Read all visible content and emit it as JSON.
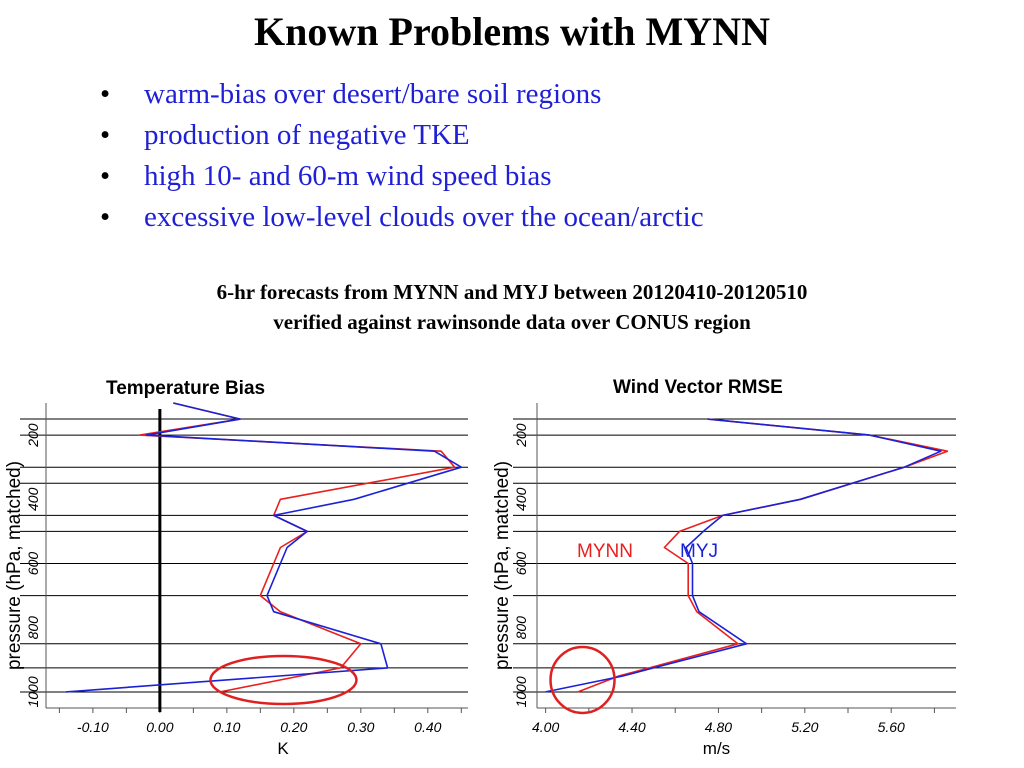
{
  "slide": {
    "title": "Known Problems with MYNN",
    "bullets": [
      "warm-bias over desert/bare soil regions",
      "production of negative TKE",
      "high 10- and 60-m wind speed bias",
      "excessive low-level clouds over the ocean/arctic"
    ],
    "subtitle_line1": "6-hr forecasts from MYNN and MYJ between 20120410-20120510",
    "subtitle_line2": "verified against rawinsonde data over CONUS region"
  },
  "colors": {
    "mynn": "#e8201e",
    "myj": "#1a22d8",
    "text": "#000000",
    "circle": "#e02020"
  },
  "chart_data": [
    {
      "type": "line",
      "title": "Temperature Bias",
      "xlabel": "K",
      "ylabel": "pressure (hPa, matched)",
      "xlim": [
        -0.17,
        0.46
      ],
      "ylim": [
        1050,
        100
      ],
      "x_ticks": [
        -0.1,
        0.0,
        0.1,
        0.2,
        0.3,
        0.4
      ],
      "x_tick_labels": [
        "-0.10",
        "0.00",
        "0.10",
        "0.20",
        "0.30",
        "0.40"
      ],
      "y_ticks": [
        200,
        400,
        600,
        800,
        1000
      ],
      "y_tick_labels": [
        "200",
        "400",
        "600",
        "800",
        "1000"
      ],
      "gridlines_y": [
        150,
        200,
        300,
        350,
        450,
        500,
        600,
        700,
        850,
        925,
        1000
      ],
      "zero_line": 0.0,
      "series": [
        {
          "name": "MYNN",
          "color": "#e8201e",
          "points": [
            [
              0.02,
              100
            ],
            [
              0.12,
              150
            ],
            [
              -0.03,
              200
            ],
            [
              0.42,
              250
            ],
            [
              0.44,
              300
            ],
            [
              0.18,
              400
            ],
            [
              0.17,
              450
            ],
            [
              0.22,
              500
            ],
            [
              0.18,
              550
            ],
            [
              0.15,
              700
            ],
            [
              0.18,
              750
            ],
            [
              0.3,
              850
            ],
            [
              0.27,
              925
            ],
            [
              0.09,
              1000
            ]
          ]
        },
        {
          "name": "MYJ",
          "color": "#1a22d8",
          "points": [
            [
              0.02,
              100
            ],
            [
              0.12,
              150
            ],
            [
              -0.02,
              200
            ],
            [
              0.41,
              250
            ],
            [
              0.45,
              300
            ],
            [
              0.29,
              400
            ],
            [
              0.17,
              450
            ],
            [
              0.22,
              500
            ],
            [
              0.19,
              550
            ],
            [
              0.16,
              700
            ],
            [
              0.17,
              750
            ],
            [
              0.33,
              850
            ],
            [
              0.34,
              925
            ],
            [
              -0.14,
              1000
            ]
          ]
        }
      ],
      "annotations": {
        "ellipse_near": [
          0.18,
          1000
        ]
      }
    },
    {
      "type": "line",
      "title": "Wind Vector RMSE",
      "xlabel": "m/s",
      "ylabel": "pressure (hPa, matched)",
      "xlim": [
        3.96,
        5.9
      ],
      "ylim": [
        1050,
        100
      ],
      "x_ticks": [
        4.0,
        4.4,
        4.8,
        5.2,
        5.6
      ],
      "x_tick_labels": [
        "4.00",
        "4.40",
        "4.80",
        "5.20",
        "5.60"
      ],
      "y_ticks": [
        200,
        400,
        600,
        800,
        1000
      ],
      "y_tick_labels": [
        "200",
        "400",
        "600",
        "800",
        "1000"
      ],
      "gridlines_y": [
        150,
        200,
        300,
        350,
        450,
        500,
        600,
        700,
        850,
        925,
        1000
      ],
      "legend": {
        "placement": "center-left",
        "entries": [
          "MYNN",
          "MYJ"
        ]
      },
      "series": [
        {
          "name": "MYNN",
          "color": "#e8201e",
          "points": [
            [
              4.75,
              150
            ],
            [
              5.5,
              200
            ],
            [
              5.86,
              250
            ],
            [
              5.66,
              300
            ],
            [
              5.18,
              400
            ],
            [
              4.82,
              450
            ],
            [
              4.62,
              500
            ],
            [
              4.55,
              550
            ],
            [
              4.66,
              600
            ],
            [
              4.66,
              700
            ],
            [
              4.7,
              750
            ],
            [
              4.89,
              850
            ],
            [
              4.48,
              925
            ],
            [
              4.34,
              950
            ],
            [
              4.15,
              1000
            ]
          ]
        },
        {
          "name": "MYJ",
          "color": "#1a22d8",
          "points": [
            [
              4.75,
              150
            ],
            [
              5.5,
              200
            ],
            [
              5.83,
              250
            ],
            [
              5.66,
              300
            ],
            [
              5.18,
              400
            ],
            [
              4.82,
              450
            ],
            [
              4.73,
              500
            ],
            [
              4.65,
              550
            ],
            [
              4.68,
              600
            ],
            [
              4.68,
              700
            ],
            [
              4.71,
              750
            ],
            [
              4.93,
              850
            ],
            [
              4.5,
              925
            ],
            [
              4.36,
              950
            ],
            [
              4.0,
              1000
            ]
          ]
        }
      ],
      "annotations": {
        "circle_near": [
          4.18,
          1000
        ]
      }
    }
  ]
}
